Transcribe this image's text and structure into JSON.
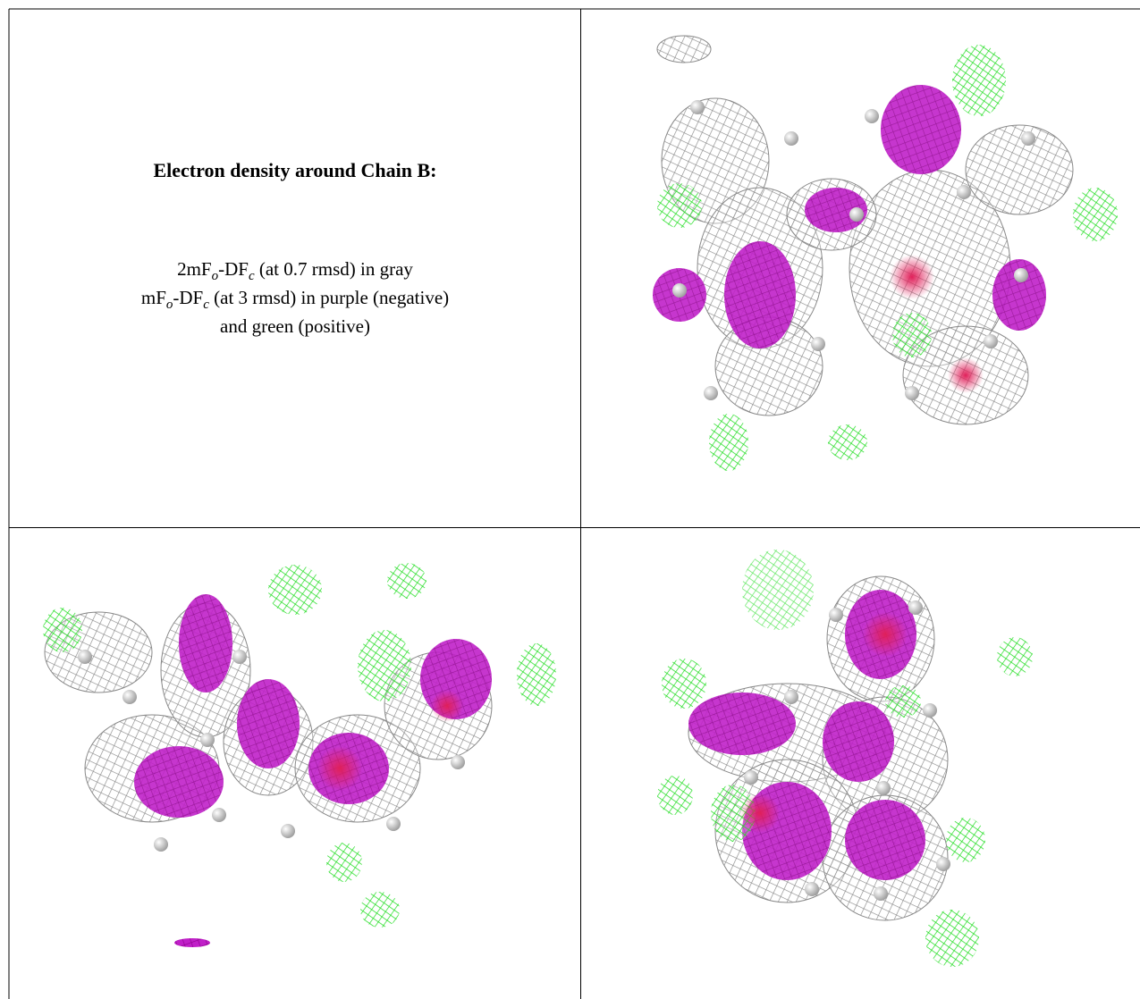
{
  "caption": {
    "title": "Electron density around Chain B:",
    "lines": [
      [
        {
          "text": "2mF"
        },
        {
          "text": "o",
          "subscript": true
        },
        {
          "text": "-DF"
        },
        {
          "text": "c",
          "subscript": true
        },
        {
          "text": " (at 0.7 rmsd) in gray"
        }
      ],
      [
        {
          "text": "mF"
        },
        {
          "text": "o",
          "subscript": true
        },
        {
          "text": "-DF"
        },
        {
          "text": "c",
          "subscript": true
        },
        {
          "text": " (at 3 rmsd) in purple (negative)"
        }
      ],
      [
        {
          "text": "and green (positive)"
        }
      ]
    ]
  }
}
